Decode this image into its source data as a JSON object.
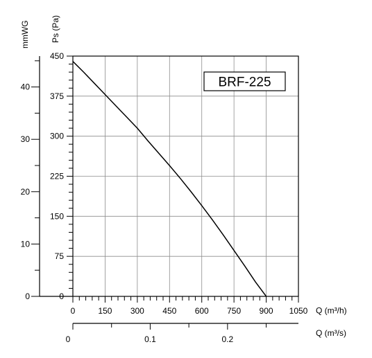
{
  "chart_data": {
    "type": "line",
    "model_label": "BRF-225",
    "x_axis": {
      "label": "Q (m³/h)",
      "range": [
        0,
        1050
      ],
      "ticks": [
        0,
        150,
        300,
        450,
        600,
        750,
        900,
        1050
      ]
    },
    "x2_axis": {
      "label": "Q (m³/s)",
      "range": [
        0,
        0.2917
      ],
      "ticks": [
        0,
        0.1,
        0.2
      ],
      "tick_labels": [
        "0",
        "0.1",
        "0.2"
      ]
    },
    "y_axis": {
      "label": "Ps (Pa)",
      "range": [
        0,
        450
      ],
      "ticks": [
        0,
        75,
        150,
        225,
        300,
        375,
        450
      ]
    },
    "y2_axis": {
      "label": "mmWG",
      "range": [
        0,
        45.9
      ],
      "ticks": [
        0,
        10,
        20,
        30,
        40
      ]
    },
    "grid": true,
    "series": [
      {
        "x": [
          0,
          50,
          100,
          150,
          200,
          250,
          300,
          350,
          400,
          450,
          500,
          550,
          600,
          650,
          700,
          750,
          800,
          850,
          900
        ],
        "y": [
          440,
          420,
          399,
          378,
          357,
          336,
          315,
          291,
          268,
          245,
          221,
          196,
          170,
          143,
          115,
          86,
          57,
          27,
          0
        ]
      }
    ]
  }
}
